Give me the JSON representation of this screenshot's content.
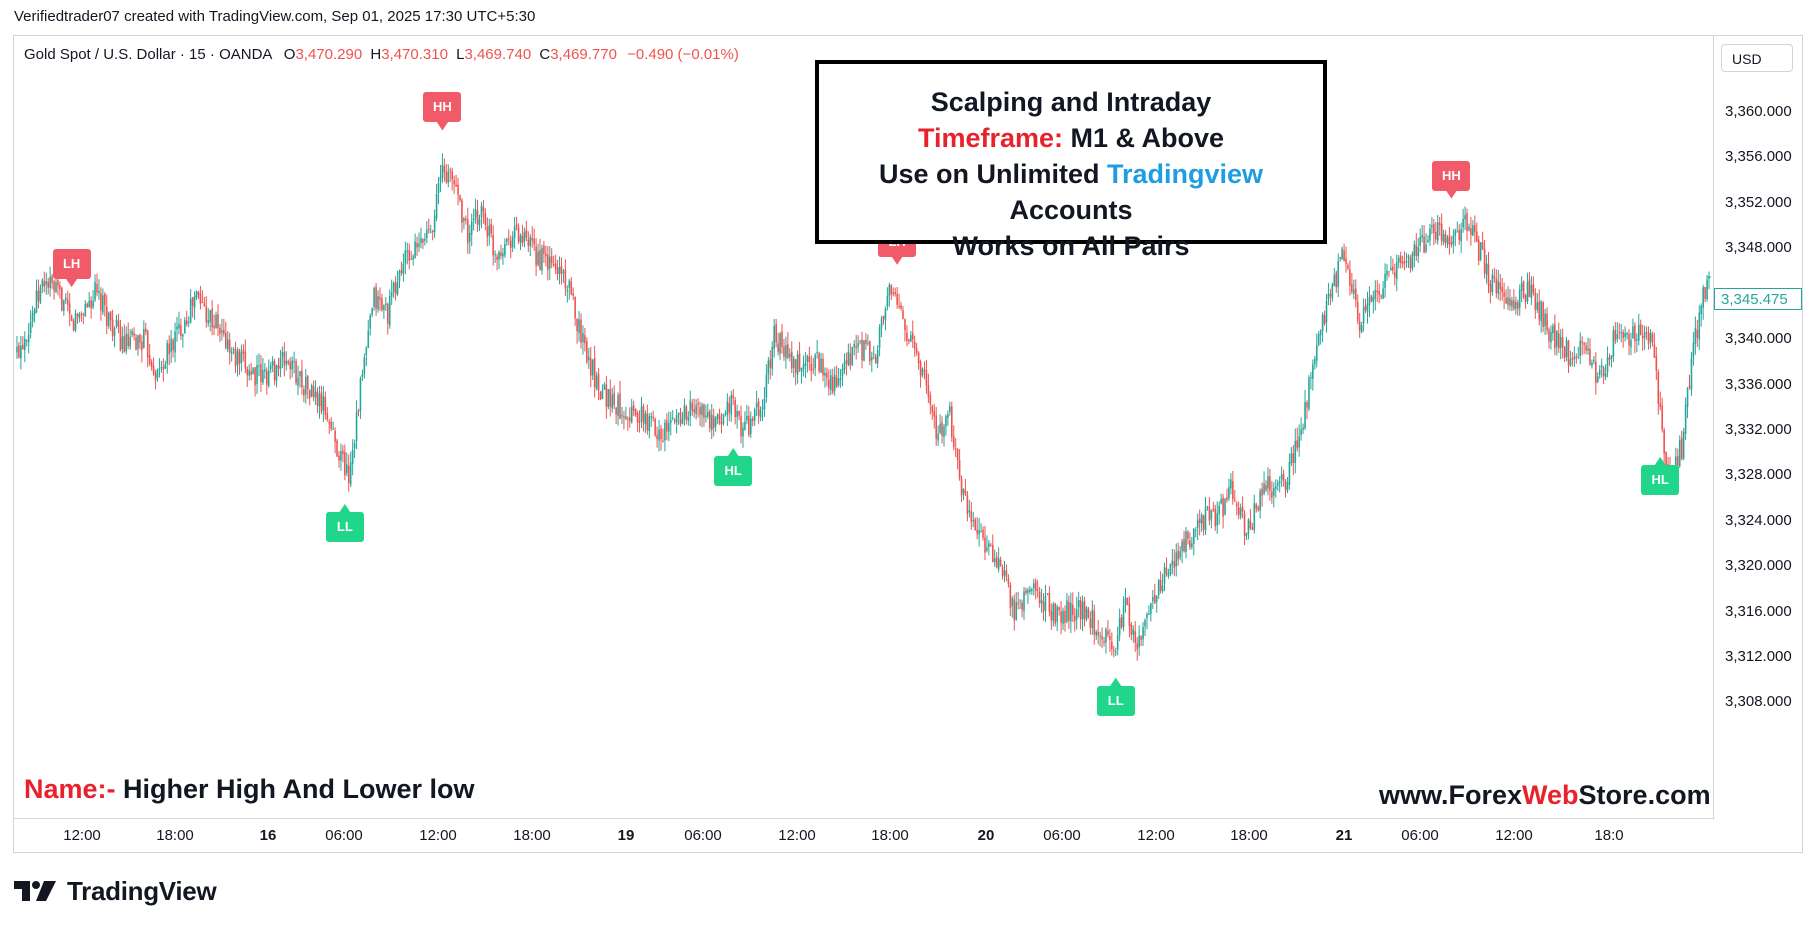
{
  "header": {
    "creator_line": "Verifiedtrader07 created with TradingView.com, Sep 01, 2025 17:30 UTC+5:30"
  },
  "legend": {
    "symbol": "Gold Spot / U.S. Dollar · 15 · OANDA",
    "open_key": "O",
    "open": "3,470.290",
    "high_key": "H",
    "high": "3,470.310",
    "low_key": "L",
    "low": "3,469.740",
    "close_key": "C",
    "close": "3,469.770",
    "change": "−0.490 (−0.01%)"
  },
  "price_scale": {
    "currency": "USD",
    "last_price": "3,345.475"
  },
  "infobox": {
    "line1": "Scalping and Intraday",
    "line2_red": "Timeframe:",
    "line2_rest": " M1 & Above",
    "line3_a": "Use on Unlimited ",
    "line3_blue": "Tradingview",
    "line3_b": " Accounts",
    "line4": "Works on All Pairs"
  },
  "footer": {
    "name_red": "Name:-",
    "name_rest": " Higher High And Lower low",
    "site_a": "www.Forex",
    "site_red": "Web",
    "site_b": "Store.com",
    "brand": "TradingView"
  },
  "colors": {
    "bull": "#26a69a",
    "bear": "#ef5350",
    "high_marker": "#f15a68",
    "low_marker": "#21d68a",
    "accent_red": "#e8222d",
    "accent_blue": "#1e9ee0"
  },
  "chart_data": {
    "type": "candlestick",
    "title": "Gold Spot / U.S. Dollar · 15 · OANDA",
    "y_ticks": [
      "3,360.000",
      "3,356.000",
      "3,352.000",
      "3,348.000",
      "3,344.000",
      "3,340.000",
      "3,336.000",
      "3,332.000",
      "3,328.000",
      "3,324.000",
      "3,320.000",
      "3,316.000",
      "3,312.000",
      "3,308.000"
    ],
    "x_ticks": [
      {
        "label": "12:00",
        "bold": false
      },
      {
        "label": "18:00",
        "bold": false
      },
      {
        "label": "16",
        "bold": true
      },
      {
        "label": "06:00",
        "bold": false
      },
      {
        "label": "12:00",
        "bold": false
      },
      {
        "label": "18:00",
        "bold": false
      },
      {
        "label": "19",
        "bold": true
      },
      {
        "label": "06:00",
        "bold": false
      },
      {
        "label": "12:00",
        "bold": false
      },
      {
        "label": "18:00",
        "bold": false
      },
      {
        "label": "20",
        "bold": true
      },
      {
        "label": "06:00",
        "bold": false
      },
      {
        "label": "12:00",
        "bold": false
      },
      {
        "label": "18:00",
        "bold": false
      },
      {
        "label": "21",
        "bold": true
      },
      {
        "label": "06:00",
        "bold": false
      },
      {
        "label": "12:00",
        "bold": false
      },
      {
        "label": "18:0",
        "bold": false
      }
    ],
    "y_range": [
      3305.5,
      3362.5
    ],
    "price_path": [
      {
        "t": 0,
        "p": 3338.8
      },
      {
        "t": 5,
        "p": 3340.8
      },
      {
        "t": 14,
        "p": 3345.2
      },
      {
        "t": 23,
        "p": 3343.5
      },
      {
        "t": 28,
        "p": 3341.2
      },
      {
        "t": 40,
        "p": 3344.0
      },
      {
        "t": 55,
        "p": 3339.4
      },
      {
        "t": 65,
        "p": 3340.0
      },
      {
        "t": 72,
        "p": 3336.8
      },
      {
        "t": 80,
        "p": 3339.8
      },
      {
        "t": 92,
        "p": 3343.8
      },
      {
        "t": 103,
        "p": 3341.0
      },
      {
        "t": 112,
        "p": 3338.2
      },
      {
        "t": 125,
        "p": 3336.6
      },
      {
        "t": 138,
        "p": 3338.2
      },
      {
        "t": 150,
        "p": 3335.4
      },
      {
        "t": 158,
        "p": 3333.8
      },
      {
        "t": 163,
        "p": 3331.0
      },
      {
        "t": 170,
        "p": 3328.0
      },
      {
        "t": 175,
        "p": 3334.5
      },
      {
        "t": 183,
        "p": 3343.6
      },
      {
        "t": 190,
        "p": 3342.4
      },
      {
        "t": 198,
        "p": 3346.8
      },
      {
        "t": 206,
        "p": 3348.0
      },
      {
        "t": 213,
        "p": 3350.5
      },
      {
        "t": 218,
        "p": 3355.0
      },
      {
        "t": 225,
        "p": 3353.6
      },
      {
        "t": 231,
        "p": 3349.0
      },
      {
        "t": 238,
        "p": 3351.5
      },
      {
        "t": 245,
        "p": 3347.6
      },
      {
        "t": 255,
        "p": 3349.5
      },
      {
        "t": 266,
        "p": 3347.4
      },
      {
        "t": 280,
        "p": 3345.8
      },
      {
        "t": 290,
        "p": 3340.0
      },
      {
        "t": 297,
        "p": 3336.2
      },
      {
        "t": 306,
        "p": 3334.3
      },
      {
        "t": 318,
        "p": 3333.2
      },
      {
        "t": 332,
        "p": 3331.8
      },
      {
        "t": 340,
        "p": 3333.5
      },
      {
        "t": 350,
        "p": 3333.8
      },
      {
        "t": 358,
        "p": 3332.0
      },
      {
        "t": 365,
        "p": 3334.5
      },
      {
        "t": 372,
        "p": 3332.0
      },
      {
        "t": 382,
        "p": 3334.0
      },
      {
        "t": 388,
        "p": 3340.5
      },
      {
        "t": 398,
        "p": 3337.5
      },
      {
        "t": 410,
        "p": 3338.2
      },
      {
        "t": 420,
        "p": 3335.6
      },
      {
        "t": 430,
        "p": 3339.5
      },
      {
        "t": 440,
        "p": 3338.2
      },
      {
        "t": 446,
        "p": 3344.0
      },
      {
        "t": 452,
        "p": 3343.0
      },
      {
        "t": 458,
        "p": 3339.8
      },
      {
        "t": 465,
        "p": 3336.5
      },
      {
        "t": 472,
        "p": 3331.5
      },
      {
        "t": 478,
        "p": 3333.0
      },
      {
        "t": 485,
        "p": 3326.0
      },
      {
        "t": 495,
        "p": 3322.6
      },
      {
        "t": 505,
        "p": 3319.0
      },
      {
        "t": 512,
        "p": 3315.8
      },
      {
        "t": 520,
        "p": 3318.3
      },
      {
        "t": 532,
        "p": 3315.8
      },
      {
        "t": 545,
        "p": 3316.3
      },
      {
        "t": 555,
        "p": 3314.4
      },
      {
        "t": 562,
        "p": 3313.0
      },
      {
        "t": 568,
        "p": 3316.4
      },
      {
        "t": 575,
        "p": 3313.0
      },
      {
        "t": 583,
        "p": 3317.6
      },
      {
        "t": 595,
        "p": 3320.8
      },
      {
        "t": 605,
        "p": 3324.0
      },
      {
        "t": 615,
        "p": 3324.4
      },
      {
        "t": 622,
        "p": 3326.6
      },
      {
        "t": 630,
        "p": 3323.0
      },
      {
        "t": 640,
        "p": 3327.0
      },
      {
        "t": 650,
        "p": 3327.5
      },
      {
        "t": 657,
        "p": 3331.5
      },
      {
        "t": 665,
        "p": 3338.0
      },
      {
        "t": 672,
        "p": 3343.5
      },
      {
        "t": 680,
        "p": 3347.4
      },
      {
        "t": 688,
        "p": 3341.0
      },
      {
        "t": 695,
        "p": 3343.8
      },
      {
        "t": 705,
        "p": 3346.0
      },
      {
        "t": 715,
        "p": 3347.3
      },
      {
        "t": 725,
        "p": 3349.6
      },
      {
        "t": 735,
        "p": 3349.0
      },
      {
        "t": 742,
        "p": 3350.2
      },
      {
        "t": 748,
        "p": 3348.4
      },
      {
        "t": 755,
        "p": 3345.2
      },
      {
        "t": 765,
        "p": 3343.0
      },
      {
        "t": 775,
        "p": 3344.5
      },
      {
        "t": 785,
        "p": 3340.8
      },
      {
        "t": 795,
        "p": 3338.6
      },
      {
        "t": 805,
        "p": 3339.5
      },
      {
        "t": 810,
        "p": 3336.0
      },
      {
        "t": 818,
        "p": 3339.8
      },
      {
        "t": 828,
        "p": 3340.4
      },
      {
        "t": 838,
        "p": 3339.8
      },
      {
        "t": 842,
        "p": 3333.0
      },
      {
        "t": 847,
        "p": 3327.8
      },
      {
        "t": 853,
        "p": 3330.5
      },
      {
        "t": 858,
        "p": 3338.0
      },
      {
        "t": 863,
        "p": 3343.0
      },
      {
        "t": 866,
        "p": 3345.475
      }
    ],
    "markers": [
      {
        "label": "LH",
        "kind": "high",
        "t": 28
      },
      {
        "label": "HH",
        "kind": "high",
        "t": 218
      },
      {
        "label": "LL",
        "kind": "low",
        "t": 168
      },
      {
        "label": "HL",
        "kind": "low",
        "t": 367
      },
      {
        "label": "LH",
        "kind": "high",
        "t": 451
      },
      {
        "label": "LL",
        "kind": "low",
        "t": 563
      },
      {
        "label": "HH",
        "kind": "high",
        "t": 735
      },
      {
        "label": "HL",
        "kind": "low",
        "t": 842
      }
    ]
  }
}
